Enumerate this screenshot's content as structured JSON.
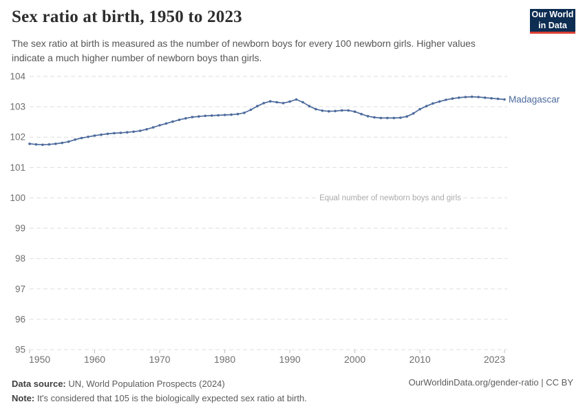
{
  "header": {
    "title": "Sex ratio at birth, 1950 to 2023",
    "subtitle": "The sex ratio at birth is measured as the number of newborn boys for every 100 newborn girls. Higher values indicate a much higher number of newborn boys than girls.",
    "logo_line1": "Our World",
    "logo_line2": "in Data"
  },
  "chart_data": {
    "type": "line",
    "title": "Sex ratio at birth, 1950 to 2023",
    "xlabel": "",
    "ylabel": "",
    "xlim": [
      1950,
      2023
    ],
    "ylim": [
      95,
      104
    ],
    "grid": "horizontal-dashed",
    "legend_position": "end-of-line-label",
    "yticks": [
      95,
      96,
      97,
      98,
      99,
      100,
      101,
      102,
      103,
      104
    ],
    "xticks": [
      1950,
      1960,
      1970,
      1980,
      1990,
      2000,
      2010,
      2023
    ],
    "annotation": {
      "text": "Equal number of newborn boys and girls",
      "y": 100
    },
    "series": [
      {
        "name": "Madagascar",
        "color": "#4C6A9C",
        "x": [
          1950,
          1951,
          1952,
          1953,
          1954,
          1955,
          1956,
          1957,
          1958,
          1959,
          1960,
          1961,
          1962,
          1963,
          1964,
          1965,
          1966,
          1967,
          1968,
          1969,
          1970,
          1971,
          1972,
          1973,
          1974,
          1975,
          1976,
          1977,
          1978,
          1979,
          1980,
          1981,
          1982,
          1983,
          1984,
          1985,
          1986,
          1987,
          1988,
          1989,
          1990,
          1991,
          1992,
          1993,
          1994,
          1995,
          1996,
          1997,
          1998,
          1999,
          2000,
          2001,
          2002,
          2003,
          2004,
          2005,
          2006,
          2007,
          2008,
          2009,
          2010,
          2011,
          2012,
          2013,
          2014,
          2015,
          2016,
          2017,
          2018,
          2019,
          2020,
          2021,
          2022,
          2023
        ],
        "values": [
          101.78,
          101.76,
          101.75,
          101.76,
          101.78,
          101.81,
          101.85,
          101.92,
          101.97,
          102.01,
          102.05,
          102.08,
          102.11,
          102.13,
          102.14,
          102.16,
          102.18,
          102.21,
          102.26,
          102.32,
          102.39,
          102.45,
          102.51,
          102.57,
          102.62,
          102.66,
          102.68,
          102.7,
          102.71,
          102.72,
          102.73,
          102.74,
          102.76,
          102.8,
          102.9,
          103.02,
          103.12,
          103.18,
          103.15,
          103.12,
          103.17,
          103.24,
          103.15,
          103.02,
          102.92,
          102.87,
          102.85,
          102.86,
          102.88,
          102.88,
          102.84,
          102.76,
          102.69,
          102.65,
          102.63,
          102.63,
          102.63,
          102.64,
          102.68,
          102.78,
          102.92,
          103.02,
          103.11,
          103.17,
          103.23,
          103.27,
          103.3,
          103.32,
          103.33,
          103.32,
          103.3,
          103.28,
          103.26,
          103.24
        ]
      }
    ]
  },
  "footer": {
    "source_label": "Data source:",
    "source_text": " UN, World Population Prospects (2024)",
    "note_label": "Note:",
    "note_text": " It's considered that 105 is the biologically expected sex ratio at birth.",
    "link": "OurWorldinData.org/gender-ratio | CC BY"
  },
  "colors": {
    "line": "#4C6A9C",
    "series_label": "#4C6A9C",
    "gridline": "#DEDEDE",
    "tick_mark": "#BFBFBF",
    "axis_text": "#6E6E6E",
    "annotation_text": "#ABABAB",
    "title_text": "#2D2D2D",
    "subtitle_text": "#555555",
    "footer_text": "#5B5B5B",
    "logo_bg": "#0D2D52",
    "logo_accent": "#DC3E32"
  }
}
